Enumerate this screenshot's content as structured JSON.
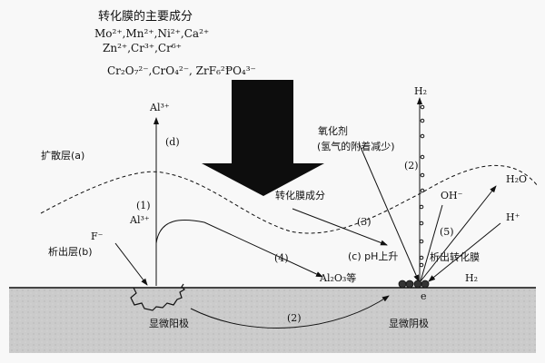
{
  "title": "转化膜的主要成分",
  "components": {
    "line1": "Mo²⁺,Mn²⁺,Ni²⁺,Ca²⁺",
    "line2": "Zn²⁺,Cr³⁺,Cr⁶⁺",
    "line3": "Cr₂O₇²⁻,CrO₄²⁻, ZrF₆²⁻",
    "phosphate": "PO₄³⁻"
  },
  "labels": {
    "al_top": "Al³⁺",
    "d": "(d)",
    "diffusion_layer": "扩散层(a)",
    "step1": "(1)",
    "al_mid": "Al³⁺",
    "fluoride": "F⁻",
    "precipitation_layer": "析出层(b)",
    "step4": "(4)",
    "al2o3": "Al₂O₃等",
    "anode": "显微阳极",
    "step2_bottom": "(2)",
    "electron": "e",
    "cathode": "显微阴极",
    "h2_top": "H₂",
    "oxidant": "氧化剂",
    "oxidant_note": "(氢气的附着减少)",
    "step2_side": "(2)",
    "film_component": "转化膜成分",
    "step3": "(3)",
    "ph_rise": "(c) pH上升",
    "hydroxide": "OH⁻",
    "step5": "(5)",
    "water": "H₂O",
    "proton": "H⁺",
    "precipitate_film": "析出转化膜",
    "h2_right": "H₂"
  },
  "colors": {
    "ink": "#111111",
    "substrate": "#c9c9c9",
    "background": "#f8f8f8"
  }
}
